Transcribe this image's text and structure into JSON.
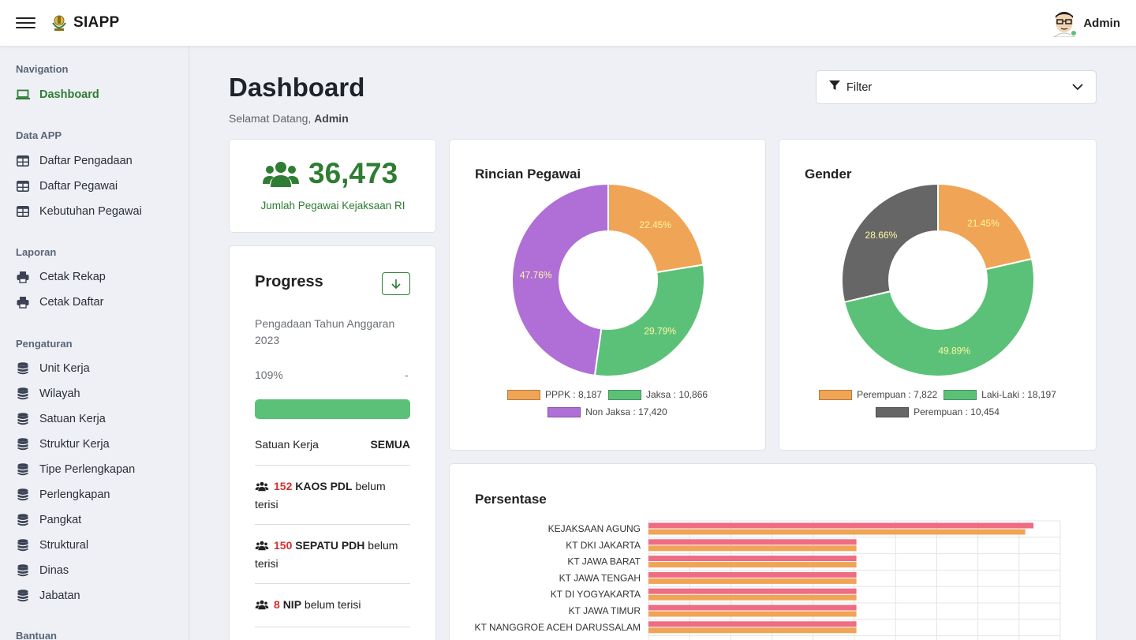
{
  "app": {
    "title": "SIAPP"
  },
  "user": {
    "name": "Admin"
  },
  "sidebar": {
    "sections": [
      {
        "title": "Navigation",
        "items": [
          {
            "label": "Dashboard",
            "icon": "laptop-icon",
            "active": true
          }
        ]
      },
      {
        "title": "Data APP",
        "items": [
          {
            "label": "Daftar Pengadaan",
            "icon": "table-icon"
          },
          {
            "label": "Daftar Pegawai",
            "icon": "table-icon"
          },
          {
            "label": "Kebutuhan Pegawai",
            "icon": "table-icon"
          }
        ]
      },
      {
        "title": "Laporan",
        "items": [
          {
            "label": "Cetak Rekap",
            "icon": "printer-icon"
          },
          {
            "label": "Cetak Daftar",
            "icon": "printer-icon"
          }
        ]
      },
      {
        "title": "Pengaturan",
        "items": [
          {
            "label": "Unit Kerja",
            "icon": "database-icon"
          },
          {
            "label": "Wilayah",
            "icon": "database-icon"
          },
          {
            "label": "Satuan Kerja",
            "icon": "database-icon"
          },
          {
            "label": "Struktur Kerja",
            "icon": "database-icon"
          },
          {
            "label": "Tipe Perlengkapan",
            "icon": "database-icon"
          },
          {
            "label": "Perlengkapan",
            "icon": "database-icon"
          },
          {
            "label": "Pangkat",
            "icon": "database-icon"
          },
          {
            "label": "Struktural",
            "icon": "database-icon"
          },
          {
            "label": "Dinas",
            "icon": "database-icon"
          },
          {
            "label": "Jabatan",
            "icon": "database-icon"
          }
        ]
      },
      {
        "title": "Bantuan",
        "items": []
      }
    ]
  },
  "page": {
    "title": "Dashboard",
    "welcome_prefix": "Selamat Datang,",
    "welcome_name": "Admin",
    "filter_label": "Filter"
  },
  "total": {
    "value": "36,473",
    "label": "Jumlah Pegawai Kejaksaan RI"
  },
  "progress": {
    "title": "Progress",
    "subtitle": "Pengadaan Tahun Anggaran 2023",
    "percent_text": "109%",
    "dash": "-",
    "fill_fraction": 1.0,
    "satuan_label": "Satuan Kerja",
    "satuan_value": "SEMUA",
    "stats": [
      {
        "count": "152",
        "item": "KAOS PDL",
        "suffix": "belum terisi"
      },
      {
        "count": "150",
        "item": "SEPATU PDH",
        "suffix": "belum terisi"
      },
      {
        "count": "8",
        "item": "NIP",
        "suffix": "belum terisi"
      }
    ]
  },
  "colors": {
    "orange": "#f0a455",
    "green": "#5cc178",
    "purple": "#b06fd6",
    "gray": "#666666",
    "pink": "#ee6c84",
    "brand_green": "#2e7d32",
    "red": "#d32f2f"
  },
  "chart_data": [
    {
      "type": "pie",
      "title": "Rincian Pegawai",
      "labels": [
        "PPPK",
        "Jaksa",
        "Non Jaksa"
      ],
      "values": [
        8187,
        10866,
        17420
      ],
      "percent_labels": [
        "22.45%",
        "29.79%",
        "47.76%"
      ],
      "legend": [
        "PPPK : 8,187",
        "Jaksa : 10,866",
        "Non Jaksa : 17,420"
      ],
      "colors": [
        "#f0a455",
        "#5cc178",
        "#b06fd6"
      ]
    },
    {
      "type": "pie",
      "title": "Gender",
      "labels": [
        "Perempuan",
        "Laki-Laki",
        "Perempuan"
      ],
      "values": [
        7822,
        18197,
        10454
      ],
      "percent_labels": [
        "21.45%",
        "49.89%",
        "28.66%"
      ],
      "legend": [
        "Perempuan : 7,822",
        "Laki-Laki : 18,197",
        "Perempuan : 10,454"
      ],
      "colors": [
        "#f0a455",
        "#5cc178",
        "#666666"
      ]
    },
    {
      "type": "bar",
      "title": "Persentase",
      "orientation": "horizontal",
      "categories": [
        "KEJAKSAAN AGUNG",
        "KT DKI JAKARTA",
        "KT JAWA BARAT",
        "KT JAWA TENGAH",
        "KT DI YOGYAKARTA",
        "KT JAWA TIMUR",
        "KT NANGGROE ACEH DARUSSALAM"
      ],
      "series": [
        {
          "values": [
            93.5,
            50.5,
            50.5,
            50.5,
            50.5,
            50.5,
            50.5
          ],
          "color": "#ee6c84"
        },
        {
          "values": [
            91.5,
            50.5,
            50.5,
            50.5,
            50.5,
            50.5,
            50.5
          ],
          "color": "#f0a455"
        }
      ],
      "xlim": [
        0,
        100
      ],
      "grid": true
    }
  ]
}
